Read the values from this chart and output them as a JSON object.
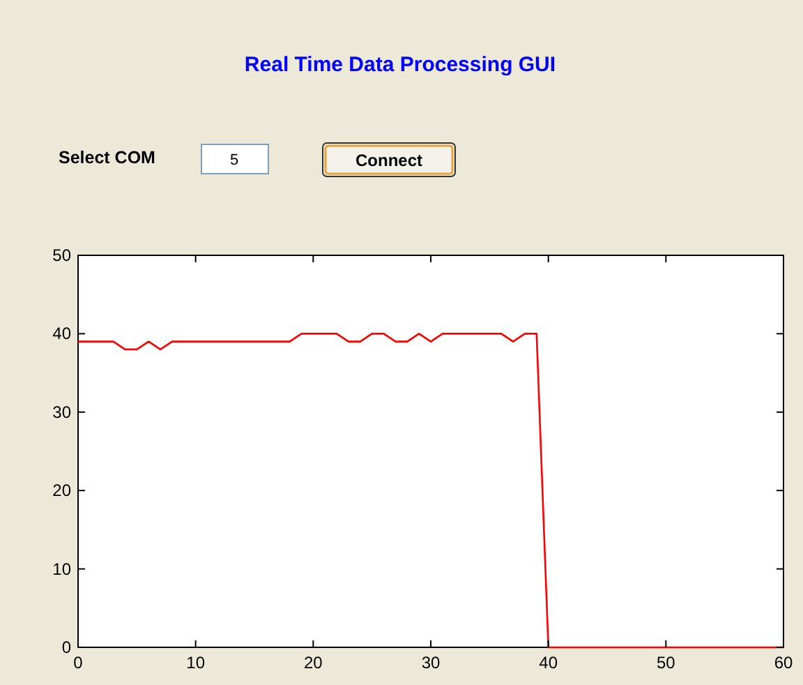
{
  "chart_data": {
    "type": "line",
    "title": "Real Time Data Processing GUI",
    "annotations": [
      "Select COM",
      "5",
      "Connect"
    ],
    "series": [
      {
        "color": "#ff0000",
        "x": [
          0,
          3,
          4,
          5,
          6,
          7,
          8,
          18,
          19,
          22,
          23,
          24,
          25,
          26,
          27,
          28,
          29,
          30,
          31,
          36,
          37,
          38,
          39,
          40,
          60
        ],
        "values": [
          39,
          39,
          38,
          38,
          39,
          38,
          39,
          39,
          40,
          40,
          39,
          39,
          40,
          40,
          39,
          39,
          40,
          39,
          40,
          40,
          39,
          40,
          40,
          0,
          0
        ]
      }
    ],
    "xlim": [
      0,
      60
    ],
    "xticks": [
      0,
      10,
      20,
      30,
      40,
      50,
      60
    ],
    "ylim": [
      0,
      50
    ],
    "yticks": [
      0,
      10,
      20,
      30,
      40,
      50
    ],
    "grid": false
  }
}
